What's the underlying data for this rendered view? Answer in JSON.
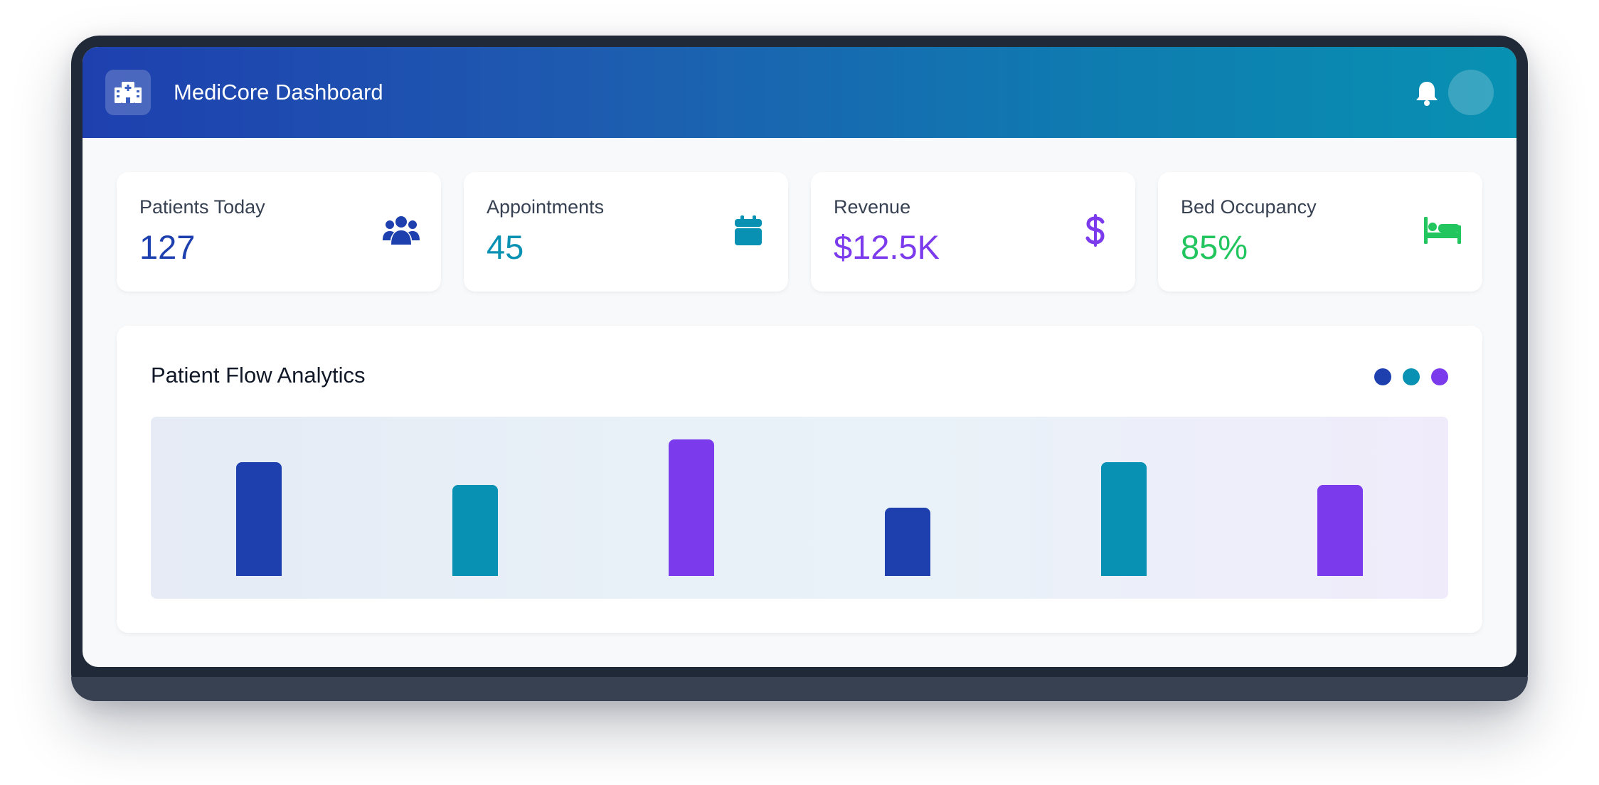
{
  "header": {
    "title": "MediCore Dashboard",
    "logo_icon": "hospital-icon",
    "bell_icon": "bell-icon"
  },
  "stats": [
    {
      "label": "Patients Today",
      "value": "127",
      "icon": "users-icon",
      "color": "#1e40af"
    },
    {
      "label": "Appointments",
      "value": "45",
      "icon": "calendar-icon",
      "color": "#0891b2"
    },
    {
      "label": "Revenue",
      "value": "$12.5K",
      "icon": "dollar-icon",
      "color": "#7c3aed"
    },
    {
      "label": "Bed Occupancy",
      "value": "85%",
      "icon": "bed-icon",
      "color": "#22c55e"
    }
  ],
  "panel": {
    "title": "Patient Flow Analytics",
    "legend_colors": [
      "#1e40af",
      "#0891b2",
      "#7c3aed"
    ]
  },
  "chart_data": {
    "type": "bar",
    "title": "Patient Flow Analytics",
    "categories": [
      "",
      "",
      "",
      "",
      "",
      ""
    ],
    "values": [
      80,
      64,
      96,
      48,
      80,
      64
    ],
    "colors": [
      "#1e40af",
      "#0891b2",
      "#7c3aed",
      "#1e40af",
      "#0891b2",
      "#7c3aed"
    ],
    "ylim": [
      0,
      100
    ],
    "grid": false
  }
}
